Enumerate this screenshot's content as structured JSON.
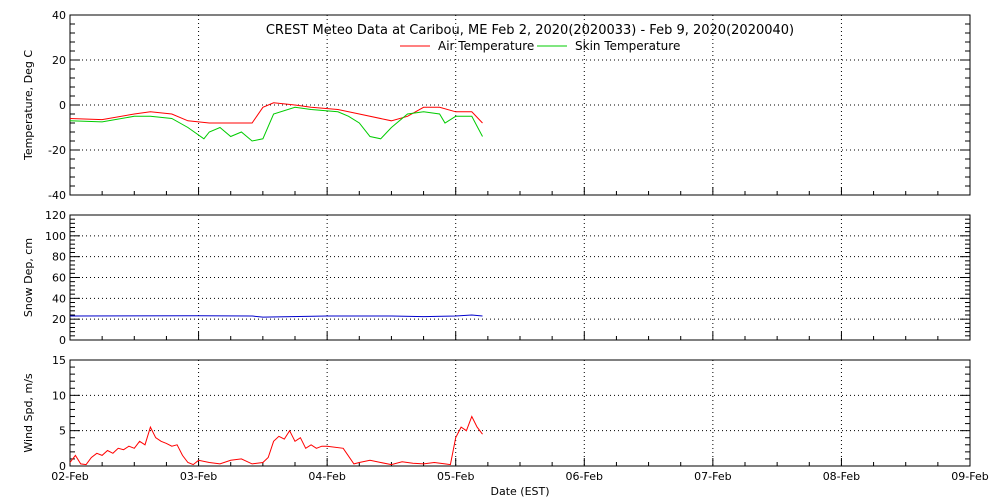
{
  "chart_data": {
    "type": "line",
    "title": "CREST Meteo Data at Caribou, ME   Feb  2, 2020(2020033) - Feb  9, 2020(2020040)",
    "xlabel": "Date (EST)",
    "x_tick_labels": [
      "02-Feb",
      "03-Feb",
      "04-Feb",
      "05-Feb",
      "06-Feb",
      "07-Feb",
      "08-Feb",
      "09-Feb"
    ],
    "xlim": [
      "2020-02-02",
      "2020-02-09"
    ],
    "grid": true,
    "panels": [
      {
        "id": "temperature",
        "ylabel": "Temperature, Deg C",
        "ylim": [
          -40,
          40
        ],
        "yticks": [
          -40,
          -20,
          0,
          20,
          40
        ],
        "legend": {
          "placement": "top-center"
        },
        "series": [
          {
            "name": "Air Temperature",
            "color": "#ff0000",
            "x": [
              "2020-02-02 00:00",
              "2020-02-02 06:00",
              "2020-02-02 12:00",
              "2020-02-02 15:00",
              "2020-02-02 19:00",
              "2020-02-02 22:00",
              "2020-02-03 02:00",
              "2020-02-03 06:00",
              "2020-02-03 10:00",
              "2020-02-03 12:00",
              "2020-02-03 14:00",
              "2020-02-03 18:00",
              "2020-02-03 21:00",
              "2020-02-04 02:00",
              "2020-02-04 06:00",
              "2020-02-04 12:00",
              "2020-02-04 15:00",
              "2020-02-04 18:00",
              "2020-02-04 21:00",
              "2020-02-05 00:00",
              "2020-02-05 03:00",
              "2020-02-05 05:00"
            ],
            "y": [
              -6,
              -6.5,
              -4,
              -3,
              -4,
              -7,
              -8,
              -8,
              -8,
              -1,
              1,
              0,
              -1,
              -2,
              -4,
              -7,
              -5,
              -1,
              -1,
              -3,
              -3,
              -8
            ]
          },
          {
            "name": "Skin Temperature",
            "color": "#00cc00",
            "x": [
              "2020-02-02 00:00",
              "2020-02-02 06:00",
              "2020-02-02 12:00",
              "2020-02-02 15:00",
              "2020-02-02 19:00",
              "2020-02-02 22:00",
              "2020-02-03 01:00",
              "2020-02-03 02:00",
              "2020-02-03 04:00",
              "2020-02-03 06:00",
              "2020-02-03 08:00",
              "2020-02-03 10:00",
              "2020-02-03 12:00",
              "2020-02-03 14:00",
              "2020-02-03 18:00",
              "2020-02-03 21:00",
              "2020-02-04 02:00",
              "2020-02-04 04:00",
              "2020-02-04 06:00",
              "2020-02-04 08:00",
              "2020-02-04 10:00",
              "2020-02-04 12:00",
              "2020-02-04 15:00",
              "2020-02-04 18:00",
              "2020-02-04 21:00",
              "2020-02-04 22:00",
              "2020-02-05 00:00",
              "2020-02-05 03:00",
              "2020-02-05 05:00"
            ],
            "y": [
              -7,
              -7.5,
              -5,
              -5,
              -6,
              -10,
              -15,
              -12,
              -10,
              -14,
              -12,
              -16,
              -15,
              -4,
              -1,
              -2,
              -3,
              -5,
              -8,
              -14,
              -15,
              -10,
              -4,
              -3,
              -4,
              -8,
              -5,
              -5,
              -14
            ]
          }
        ]
      },
      {
        "id": "snow",
        "ylabel": "Snow Dep, cm",
        "ylim": [
          0,
          120
        ],
        "yticks": [
          0,
          20,
          40,
          60,
          80,
          100,
          120
        ],
        "series": [
          {
            "color": "#0000cc",
            "x": [
              "2020-02-02 00:00",
              "2020-02-03 00:00",
              "2020-02-03 10:00",
              "2020-02-03 12:00",
              "2020-02-04 00:00",
              "2020-02-04 12:00",
              "2020-02-04 18:00",
              "2020-02-05 00:00",
              "2020-02-05 03:00",
              "2020-02-05 05:00"
            ],
            "y": [
              23,
              23.3,
              23,
              22,
              23,
              23,
              22.5,
              23,
              24,
              23
            ]
          }
        ]
      },
      {
        "id": "wind",
        "ylabel": "Wind Spd, m/s",
        "ylim": [
          0,
          15
        ],
        "yticks": [
          0,
          5,
          10,
          15
        ],
        "series": [
          {
            "color": "#ff0000",
            "x": [
              "2020-02-02 00:00",
              "2020-02-02 01:00",
              "2020-02-02 02:00",
              "2020-02-02 03:00",
              "2020-02-02 04:00",
              "2020-02-02 05:00",
              "2020-02-02 06:00",
              "2020-02-02 07:00",
              "2020-02-02 08:00",
              "2020-02-02 09:00",
              "2020-02-02 10:00",
              "2020-02-02 11:00",
              "2020-02-02 12:00",
              "2020-02-02 13:00",
              "2020-02-02 14:00",
              "2020-02-02 15:00",
              "2020-02-02 16:00",
              "2020-02-02 17:00",
              "2020-02-02 18:00",
              "2020-02-02 19:00",
              "2020-02-02 20:00",
              "2020-02-02 21:00",
              "2020-02-02 22:00",
              "2020-02-02 23:00",
              "2020-02-03 00:00",
              "2020-02-03 02:00",
              "2020-02-03 04:00",
              "2020-02-03 06:00",
              "2020-02-03 08:00",
              "2020-02-03 10:00",
              "2020-02-03 12:00",
              "2020-02-03 13:00",
              "2020-02-03 14:00",
              "2020-02-03 15:00",
              "2020-02-03 16:00",
              "2020-02-03 17:00",
              "2020-02-03 18:00",
              "2020-02-03 19:00",
              "2020-02-03 20:00",
              "2020-02-03 21:00",
              "2020-02-03 22:00",
              "2020-02-03 23:00",
              "2020-02-04 00:00",
              "2020-02-04 03:00",
              "2020-02-04 05:00",
              "2020-02-04 06:00",
              "2020-02-04 08:00",
              "2020-02-04 10:00",
              "2020-02-04 12:00",
              "2020-02-04 14:00",
              "2020-02-04 16:00",
              "2020-02-04 18:00",
              "2020-02-04 20:00",
              "2020-02-04 22:00",
              "2020-02-04 23:00",
              "2020-02-05 00:00",
              "2020-02-05 01:00",
              "2020-02-05 02:00",
              "2020-02-05 03:00",
              "2020-02-05 04:00",
              "2020-02-05 05:00"
            ],
            "y": [
              0.5,
              1.5,
              0.3,
              0.2,
              1.2,
              1.8,
              1.5,
              2.2,
              1.8,
              2.5,
              2.3,
              2.8,
              2.5,
              3.5,
              3,
              5.5,
              4,
              3.5,
              3.2,
              2.8,
              3,
              1.5,
              0.5,
              0.2,
              0.8,
              0.5,
              0.3,
              0.8,
              1,
              0.3,
              0.5,
              1.2,
              3.5,
              4.2,
              3.8,
              5,
              3.5,
              4,
              2.5,
              3,
              2.5,
              2.8,
              2.8,
              2.5,
              0.3,
              0.5,
              0.8,
              0.5,
              0.2,
              0.6,
              0.4,
              0.3,
              0.5,
              0.3,
              0.2,
              4,
              5.5,
              5,
              7,
              5.5,
              4.5
            ]
          }
        ]
      }
    ]
  }
}
